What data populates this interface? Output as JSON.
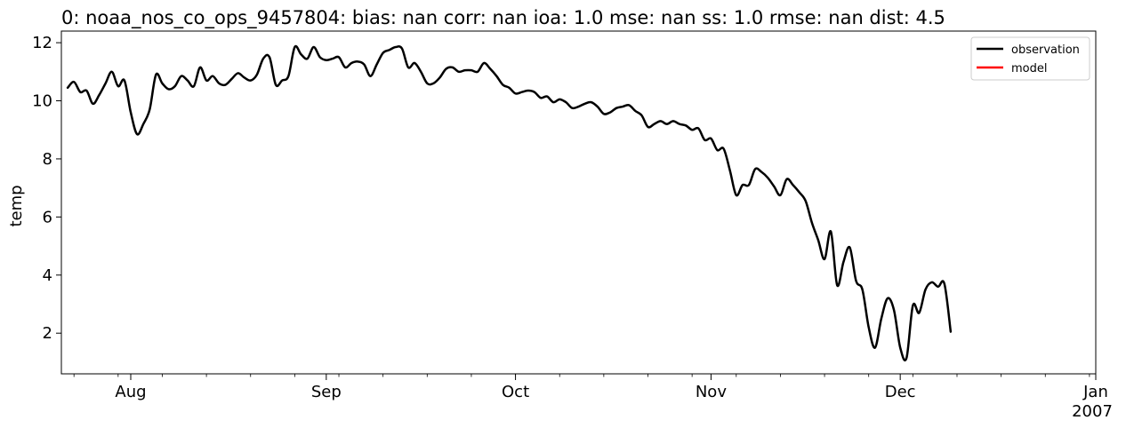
{
  "chart_data": {
    "type": "line",
    "title": "0: noaa_nos_co_ops_9457804: bias: nan  corr: nan  ioa: 1.0  mse: nan  ss: 1.0  rmse: nan  dist: 4.5",
    "xlabel": "",
    "ylabel": "temp",
    "xlim": [
      "2006-07-21",
      "2007-01-01"
    ],
    "ylim": [
      0.6,
      12.4
    ],
    "yticks": [
      2,
      4,
      6,
      8,
      10,
      12
    ],
    "xticks": [
      {
        "date": "2006-08-01",
        "label": "Aug"
      },
      {
        "date": "2006-09-01",
        "label": "Sep"
      },
      {
        "date": "2006-10-01",
        "label": "Oct"
      },
      {
        "date": "2006-11-01",
        "label": "Nov"
      },
      {
        "date": "2006-12-01",
        "label": "Dec"
      },
      {
        "date": "2007-01-01",
        "label": "Jan",
        "sublabel": "2007"
      }
    ],
    "grid": false,
    "legend_position": "top-right",
    "series": [
      {
        "name": "observation",
        "color": "#000000",
        "points": [
          [
            "2006-07-22",
            10.45
          ],
          [
            "2006-07-23",
            10.65
          ],
          [
            "2006-07-24",
            10.3
          ],
          [
            "2006-07-25",
            10.35
          ],
          [
            "2006-07-26",
            9.9
          ],
          [
            "2006-07-27",
            10.2
          ],
          [
            "2006-07-28",
            10.6
          ],
          [
            "2006-07-29",
            11.0
          ],
          [
            "2006-07-30",
            10.5
          ],
          [
            "2006-07-31",
            10.7
          ],
          [
            "2006-08-01",
            9.6
          ],
          [
            "2006-08-02",
            8.85
          ],
          [
            "2006-08-03",
            9.2
          ],
          [
            "2006-08-04",
            9.7
          ],
          [
            "2006-08-05",
            10.9
          ],
          [
            "2006-08-06",
            10.6
          ],
          [
            "2006-08-07",
            10.4
          ],
          [
            "2006-08-08",
            10.5
          ],
          [
            "2006-08-09",
            10.85
          ],
          [
            "2006-08-10",
            10.7
          ],
          [
            "2006-08-11",
            10.5
          ],
          [
            "2006-08-12",
            11.15
          ],
          [
            "2006-08-13",
            10.7
          ],
          [
            "2006-08-14",
            10.85
          ],
          [
            "2006-08-15",
            10.6
          ],
          [
            "2006-08-16",
            10.55
          ],
          [
            "2006-08-17",
            10.75
          ],
          [
            "2006-08-18",
            10.95
          ],
          [
            "2006-08-19",
            10.8
          ],
          [
            "2006-08-20",
            10.7
          ],
          [
            "2006-08-21",
            10.9
          ],
          [
            "2006-08-22",
            11.45
          ],
          [
            "2006-08-23",
            11.5
          ],
          [
            "2006-08-24",
            10.55
          ],
          [
            "2006-08-25",
            10.7
          ],
          [
            "2006-08-26",
            10.85
          ],
          [
            "2006-08-27",
            11.85
          ],
          [
            "2006-08-28",
            11.6
          ],
          [
            "2006-08-29",
            11.45
          ],
          [
            "2006-08-30",
            11.85
          ],
          [
            "2006-08-31",
            11.5
          ],
          [
            "2006-09-01",
            11.4
          ],
          [
            "2006-09-02",
            11.45
          ],
          [
            "2006-09-03",
            11.5
          ],
          [
            "2006-09-04",
            11.15
          ],
          [
            "2006-09-05",
            11.3
          ],
          [
            "2006-09-06",
            11.35
          ],
          [
            "2006-09-07",
            11.25
          ],
          [
            "2006-09-08",
            10.85
          ],
          [
            "2006-09-09",
            11.25
          ],
          [
            "2006-09-10",
            11.65
          ],
          [
            "2006-09-11",
            11.75
          ],
          [
            "2006-09-12",
            11.85
          ],
          [
            "2006-09-13",
            11.8
          ],
          [
            "2006-09-14",
            11.15
          ],
          [
            "2006-09-15",
            11.3
          ],
          [
            "2006-09-16",
            11.0
          ],
          [
            "2006-09-17",
            10.6
          ],
          [
            "2006-09-18",
            10.6
          ],
          [
            "2006-09-19",
            10.8
          ],
          [
            "2006-09-20",
            11.1
          ],
          [
            "2006-09-21",
            11.15
          ],
          [
            "2006-09-22",
            11.0
          ],
          [
            "2006-09-23",
            11.05
          ],
          [
            "2006-09-24",
            11.05
          ],
          [
            "2006-09-25",
            11.0
          ],
          [
            "2006-09-26",
            11.3
          ],
          [
            "2006-09-27",
            11.1
          ],
          [
            "2006-09-28",
            10.85
          ],
          [
            "2006-09-29",
            10.55
          ],
          [
            "2006-09-30",
            10.45
          ],
          [
            "2006-10-01",
            10.25
          ],
          [
            "2006-10-02",
            10.3
          ],
          [
            "2006-10-03",
            10.35
          ],
          [
            "2006-10-04",
            10.3
          ],
          [
            "2006-10-05",
            10.1
          ],
          [
            "2006-10-06",
            10.15
          ],
          [
            "2006-10-07",
            9.95
          ],
          [
            "2006-10-08",
            10.05
          ],
          [
            "2006-10-09",
            9.95
          ],
          [
            "2006-10-10",
            9.75
          ],
          [
            "2006-10-11",
            9.8
          ],
          [
            "2006-10-12",
            9.9
          ],
          [
            "2006-10-13",
            9.95
          ],
          [
            "2006-10-14",
            9.8
          ],
          [
            "2006-10-15",
            9.55
          ],
          [
            "2006-10-16",
            9.6
          ],
          [
            "2006-10-17",
            9.75
          ],
          [
            "2006-10-18",
            9.8
          ],
          [
            "2006-10-19",
            9.85
          ],
          [
            "2006-10-20",
            9.65
          ],
          [
            "2006-10-21",
            9.5
          ],
          [
            "2006-10-22",
            9.1
          ],
          [
            "2006-10-23",
            9.2
          ],
          [
            "2006-10-24",
            9.3
          ],
          [
            "2006-10-25",
            9.2
          ],
          [
            "2006-10-26",
            9.3
          ],
          [
            "2006-10-27",
            9.2
          ],
          [
            "2006-10-28",
            9.15
          ],
          [
            "2006-10-29",
            9.0
          ],
          [
            "2006-10-30",
            9.05
          ],
          [
            "2006-10-31",
            8.65
          ],
          [
            "2006-11-01",
            8.7
          ],
          [
            "2006-11-02",
            8.3
          ],
          [
            "2006-11-03",
            8.35
          ],
          [
            "2006-11-04",
            7.6
          ],
          [
            "2006-11-05",
            6.75
          ],
          [
            "2006-11-06",
            7.1
          ],
          [
            "2006-11-07",
            7.1
          ],
          [
            "2006-11-08",
            7.65
          ],
          [
            "2006-11-09",
            7.55
          ],
          [
            "2006-11-10",
            7.35
          ],
          [
            "2006-11-11",
            7.05
          ],
          [
            "2006-11-12",
            6.75
          ],
          [
            "2006-11-13",
            7.3
          ],
          [
            "2006-11-14",
            7.1
          ],
          [
            "2006-11-15",
            6.85
          ],
          [
            "2006-11-16",
            6.55
          ],
          [
            "2006-11-17",
            5.8
          ],
          [
            "2006-11-18",
            5.2
          ],
          [
            "2006-11-19",
            4.55
          ],
          [
            "2006-11-20",
            5.5
          ],
          [
            "2006-11-21",
            3.65
          ],
          [
            "2006-11-22",
            4.45
          ],
          [
            "2006-11-23",
            4.95
          ],
          [
            "2006-11-24",
            3.8
          ],
          [
            "2006-11-25",
            3.5
          ],
          [
            "2006-11-26",
            2.2
          ],
          [
            "2006-11-27",
            1.5
          ],
          [
            "2006-11-28",
            2.5
          ],
          [
            "2006-11-29",
            3.2
          ],
          [
            "2006-11-30",
            2.8
          ],
          [
            "2006-12-01",
            1.5
          ],
          [
            "2006-12-02",
            1.15
          ],
          [
            "2006-12-03",
            2.95
          ],
          [
            "2006-12-04",
            2.7
          ],
          [
            "2006-12-05",
            3.5
          ],
          [
            "2006-12-06",
            3.75
          ],
          [
            "2006-12-07",
            3.6
          ],
          [
            "2006-12-08",
            3.7
          ],
          [
            "2006-12-09",
            2.05
          ]
        ]
      },
      {
        "name": "model",
        "color": "#ff0000",
        "points": []
      }
    ]
  }
}
